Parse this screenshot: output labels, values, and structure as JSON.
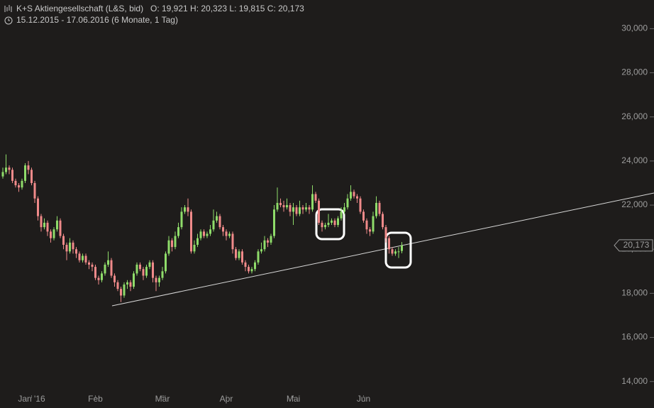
{
  "chart_data": {
    "type": "candlestick",
    "title": "K+S Aktiengesellschaft (L&S, bid)",
    "ohlc_text": "O: 19,921  H: 20,323  L: 19,815  C: 20,173",
    "subtitle": "15.12.2015 - 17.06.2016 (6 Monate, 1 Tag)",
    "price_tag": "20,173",
    "up_color": "#8fdc6a",
    "down_color": "#f08a8a",
    "ylim": [
      12800,
      31300
    ],
    "yticks": [
      {
        "value": 14000,
        "label": "14,000"
      },
      {
        "value": 16000,
        "label": "16,000"
      },
      {
        "value": 18000,
        "label": "18,000"
      },
      {
        "value": 20000,
        "label": "20,000"
      },
      {
        "value": 22000,
        "label": "22,000"
      },
      {
        "value": 24000,
        "label": "24,000"
      },
      {
        "value": 26000,
        "label": "26,000"
      },
      {
        "value": 28000,
        "label": "28,000"
      },
      {
        "value": 30000,
        "label": "30,000"
      }
    ],
    "categories": [
      null,
      null,
      null,
      null,
      null,
      null,
      null,
      null,
      null,
      "Jan '16",
      null,
      null,
      null,
      null,
      null,
      null,
      null,
      null,
      null,
      null,
      null,
      null,
      null,
      null,
      null,
      null,
      null,
      null,
      null,
      "Feb",
      null,
      null,
      null,
      null,
      null,
      null,
      null,
      null,
      null,
      null,
      null,
      null,
      null,
      null,
      null,
      null,
      null,
      null,
      null,
      null,
      "Mär",
      null,
      null,
      null,
      null,
      null,
      null,
      null,
      null,
      null,
      null,
      null,
      null,
      null,
      null,
      null,
      null,
      null,
      null,
      null,
      "Apr",
      null,
      null,
      null,
      null,
      null,
      null,
      null,
      null,
      null,
      null,
      null,
      null,
      null,
      null,
      null,
      null,
      null,
      null,
      null,
      null,
      "Mai",
      null,
      null,
      null,
      null,
      null,
      null,
      null,
      null,
      null,
      null,
      null,
      null,
      null,
      null,
      null,
      null,
      null,
      null,
      null,
      null,
      null,
      "Jun",
      null,
      null,
      null,
      null,
      null,
      null,
      null,
      null,
      null,
      null,
      null,
      null
    ],
    "open": [
      23300,
      23500,
      23700,
      23600,
      23100,
      22900,
      22800,
      23100,
      23800,
      23600,
      23000,
      22300,
      21500,
      21000,
      21200,
      20800,
      20500,
      20900,
      21300,
      20600,
      20200,
      19900,
      20300,
      20000,
      19800,
      19500,
      19700,
      19400,
      19300,
      19200,
      18700,
      18600,
      18900,
      19300,
      19500,
      18800,
      18500,
      18200,
      17900,
      18400,
      18500,
      18300,
      18900,
      19300,
      19100,
      18800,
      19200,
      19400,
      18700,
      18500,
      18700,
      19000,
      19800,
      20400,
      20100,
      20600,
      21000,
      21700,
      21900,
      21700,
      19900,
      20200,
      20500,
      20800,
      20600,
      20700,
      20900,
      21300,
      21500,
      21000,
      20800,
      20600,
      20700,
      20000,
      19600,
      19900,
      19400,
      19200,
      19000,
      19100,
      19400,
      19900,
      20000,
      20400,
      20300,
      20600,
      21800,
      22100,
      22000,
      21900,
      22000,
      21700,
      21900,
      21600,
      21900,
      21800,
      21900,
      21800,
      22500,
      22200,
      21200,
      21000,
      21100,
      21200,
      21300,
      21100,
      21400,
      21700,
      21900,
      22300,
      22600,
      22400,
      22300,
      21700,
      21300,
      20900,
      20800,
      21500,
      22100,
      21600,
      21000,
      20500,
      20000,
      19800,
      19900,
      19921
    ],
    "high": [
      23700,
      24300,
      23800,
      23700,
      23200,
      23000,
      23200,
      23900,
      24000,
      23700,
      23100,
      22400,
      21600,
      21400,
      21300,
      20900,
      21000,
      21500,
      21400,
      20700,
      20300,
      20500,
      20400,
      20100,
      19900,
      19800,
      19800,
      19500,
      19400,
      19300,
      18800,
      19000,
      19400,
      19900,
      19600,
      18900,
      18600,
      18300,
      18500,
      18600,
      18600,
      19000,
      19400,
      19400,
      19200,
      19300,
      19500,
      19500,
      18800,
      18800,
      19200,
      19900,
      20600,
      20500,
      20800,
      21200,
      21900,
      22000,
      22300,
      21800,
      20400,
      20700,
      20900,
      20900,
      20800,
      21100,
      21800,
      21700,
      21600,
      21100,
      20900,
      20800,
      20800,
      20100,
      20000,
      20000,
      19500,
      19300,
      19200,
      19500,
      20000,
      20300,
      20600,
      20500,
      20700,
      22000,
      22800,
      22300,
      22200,
      22300,
      22100,
      22100,
      22000,
      22200,
      22000,
      22100,
      22000,
      22900,
      22600,
      22300,
      21300,
      21200,
      21600,
      21400,
      21400,
      21500,
      21900,
      22100,
      22500,
      22900,
      22700,
      22500,
      22400,
      21800,
      21400,
      21000,
      21700,
      22400,
      22200,
      21700,
      21100,
      20600,
      20100,
      20000,
      20100,
      20323
    ],
    "low": [
      23200,
      23400,
      23400,
      23000,
      22800,
      22600,
      22700,
      23000,
      23400,
      22900,
      22100,
      21300,
      20800,
      20900,
      20600,
      20300,
      20400,
      20800,
      20500,
      20000,
      19500,
      19800,
      19800,
      19600,
      19400,
      19400,
      19300,
      19100,
      19000,
      18600,
      18400,
      18500,
      18800,
      19200,
      18700,
      18300,
      18100,
      17600,
      17800,
      18200,
      18100,
      18200,
      18800,
      19000,
      18600,
      18700,
      19100,
      18500,
      18100,
      18300,
      18600,
      18900,
      19700,
      19900,
      20000,
      20500,
      20900,
      21600,
      21500,
      19800,
      19800,
      20100,
      20400,
      20500,
      20500,
      20600,
      20800,
      21200,
      20900,
      20600,
      20400,
      20500,
      19800,
      19500,
      19500,
      19300,
      19000,
      18900,
      18900,
      19000,
      19300,
      19800,
      19900,
      20100,
      20200,
      20500,
      21700,
      21900,
      21700,
      21800,
      21500,
      21100,
      21500,
      21500,
      21600,
      21700,
      21600,
      21700,
      22100,
      21100,
      20800,
      20900,
      21000,
      21100,
      21000,
      21000,
      21300,
      21600,
      21800,
      22200,
      22300,
      22100,
      21600,
      21200,
      20700,
      20600,
      20700,
      21400,
      21500,
      20900,
      20300,
      19800,
      19700,
      19700,
      19600,
      19815
    ],
    "close": [
      23500,
      23700,
      23600,
      23100,
      22900,
      22800,
      23100,
      23800,
      23600,
      23000,
      22300,
      21500,
      21000,
      21200,
      20800,
      20500,
      20900,
      21300,
      20600,
      20200,
      19900,
      20300,
      20000,
      19800,
      19500,
      19700,
      19400,
      19300,
      19200,
      18700,
      18600,
      18900,
      19300,
      19500,
      18800,
      18500,
      18200,
      17900,
      18400,
      18500,
      18300,
      18900,
      19300,
      19100,
      18800,
      19200,
      19400,
      18700,
      18500,
      18700,
      19000,
      19800,
      20400,
      20100,
      20600,
      21000,
      21700,
      21900,
      21700,
      19900,
      20200,
      20500,
      20800,
      20600,
      20700,
      20900,
      21300,
      21500,
      21000,
      20800,
      20600,
      20700,
      20000,
      19600,
      19900,
      19400,
      19200,
      19000,
      19100,
      19400,
      19900,
      20000,
      20400,
      20300,
      20600,
      21800,
      22100,
      22000,
      21900,
      22000,
      21700,
      21900,
      21600,
      21900,
      21800,
      21900,
      21800,
      22500,
      22200,
      21200,
      21000,
      21100,
      21200,
      21300,
      21100,
      21400,
      21700,
      21900,
      22300,
      22600,
      22400,
      22300,
      21700,
      21300,
      20900,
      20800,
      21500,
      22100,
      21600,
      21000,
      20500,
      20000,
      19800,
      19900,
      19900,
      20173
    ]
  }
}
